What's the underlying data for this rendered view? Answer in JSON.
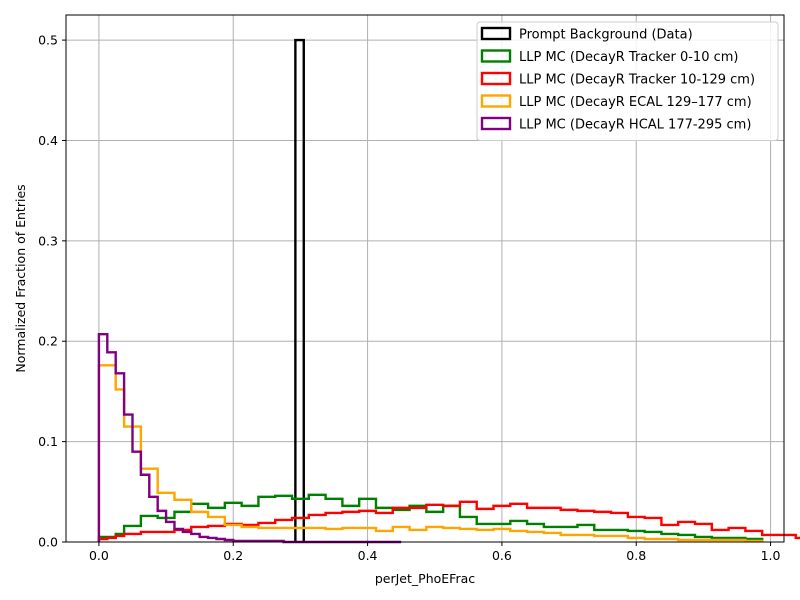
{
  "chart_data": {
    "type": "histogram-step",
    "title": "",
    "xlabel": "perJet_PhoEFrac",
    "ylabel": "Normalized Fraction of Entries",
    "xlim": [
      -0.049,
      1.02
    ],
    "ylim": [
      0,
      0.525
    ],
    "grid": true,
    "legend_position": "top-right",
    "x_ticks": [
      0.0,
      0.2,
      0.4,
      0.6,
      0.8,
      1.0
    ],
    "x_tick_labels": [
      "0.0",
      "0.2",
      "0.4",
      "0.6",
      "0.8",
      "1.0"
    ],
    "y_ticks": [
      0.0,
      0.1,
      0.2,
      0.3,
      0.4,
      0.5
    ],
    "y_tick_labels": [
      "0.0",
      "0.1",
      "0.2",
      "0.3",
      "0.4",
      "0.5"
    ],
    "bin_start": 0.0,
    "bin_width": 0.0125,
    "series": [
      {
        "name": "Prompt Background (Data)",
        "color": "#000000",
        "bins": [
          [
            0.2925,
            0.305,
            0.5
          ]
        ]
      },
      {
        "name": "LLP MC (DecayR Tracker 0-10 cm)",
        "color": "#008000",
        "values": [
          0.005,
          0.005,
          0.008,
          0.016,
          0.016,
          0.026,
          0.026,
          0.024,
          0.024,
          0.03,
          0.03,
          0.038,
          0.038,
          0.034,
          0.034,
          0.039,
          0.039,
          0.036,
          0.036,
          0.045,
          0.045,
          0.046,
          0.046,
          0.043,
          0.043,
          0.047,
          0.047,
          0.043,
          0.043,
          0.036,
          0.036,
          0.043,
          0.043,
          0.034,
          0.034,
          0.032,
          0.032,
          0.036,
          0.036,
          0.03,
          0.03,
          0.036,
          0.036,
          0.025,
          0.025,
          0.018,
          0.018,
          0.018,
          0.018,
          0.021,
          0.021,
          0.018,
          0.018,
          0.015,
          0.015,
          0.015,
          0.015,
          0.017,
          0.017,
          0.012,
          0.012,
          0.012,
          0.012,
          0.011,
          0.011,
          0.01,
          0.01,
          0.008,
          0.008,
          0.007,
          0.007,
          0.005,
          0.005,
          0.004,
          0.004,
          0.004,
          0.004,
          0.003,
          0.003
        ]
      },
      {
        "name": "LLP MC (DecayR Tracker 10-129 cm)",
        "color": "#ff0000",
        "values": [
          0.003,
          0.004,
          0.006,
          0.008,
          0.008,
          0.01,
          0.01,
          0.01,
          0.01,
          0.012,
          0.012,
          0.015,
          0.015,
          0.016,
          0.016,
          0.018,
          0.018,
          0.017,
          0.017,
          0.019,
          0.019,
          0.022,
          0.022,
          0.024,
          0.024,
          0.027,
          0.027,
          0.029,
          0.029,
          0.03,
          0.03,
          0.031,
          0.031,
          0.029,
          0.029,
          0.034,
          0.034,
          0.034,
          0.034,
          0.037,
          0.037,
          0.036,
          0.036,
          0.04,
          0.04,
          0.033,
          0.033,
          0.036,
          0.036,
          0.038,
          0.038,
          0.034,
          0.034,
          0.034,
          0.034,
          0.032,
          0.032,
          0.031,
          0.031,
          0.03,
          0.03,
          0.029,
          0.029,
          0.025,
          0.025,
          0.024,
          0.024,
          0.017,
          0.017,
          0.02,
          0.02,
          0.018,
          0.018,
          0.012,
          0.012,
          0.014,
          0.014,
          0.011,
          0.011,
          0.007,
          0.007,
          0.007,
          0.007,
          0.004,
          0.004,
          0.003,
          0.003,
          0.002,
          0.002,
          0.001,
          0.001,
          0.001,
          0.001,
          0.001,
          0.001,
          0.001,
          0.001,
          0.001
        ]
      },
      {
        "name": "LLP MC (DecayR ECAL 129–177 cm)",
        "color": "#ffa500",
        "values": [
          0.176,
          0.176,
          0.152,
          0.115,
          0.115,
          0.073,
          0.073,
          0.049,
          0.049,
          0.042,
          0.042,
          0.03,
          0.03,
          0.025,
          0.025,
          0.017,
          0.017,
          0.015,
          0.015,
          0.014,
          0.014,
          0.014,
          0.014,
          0.014,
          0.014,
          0.014,
          0.014,
          0.013,
          0.013,
          0.014,
          0.014,
          0.014,
          0.014,
          0.011,
          0.011,
          0.015,
          0.015,
          0.012,
          0.012,
          0.015,
          0.015,
          0.014,
          0.014,
          0.013,
          0.013,
          0.012,
          0.012,
          0.013,
          0.013,
          0.011,
          0.011,
          0.01,
          0.01,
          0.009,
          0.009,
          0.007,
          0.007,
          0.007,
          0.007,
          0.006,
          0.006,
          0.006,
          0.006,
          0.004,
          0.004,
          0.003,
          0.003,
          0.003,
          0.003,
          0.002,
          0.002,
          0.002,
          0.002,
          0.002,
          0.002,
          0.002,
          0.002,
          0.001,
          0.001
        ]
      },
      {
        "name": "LLP MC (DecayR HCAL 177-295 cm)",
        "color": "#800080",
        "values": [
          0.207,
          0.189,
          0.168,
          0.127,
          0.09,
          0.067,
          0.045,
          0.031,
          0.02,
          0.013,
          0.01,
          0.008,
          0.005,
          0.004,
          0.003,
          0.002,
          0.001,
          0.001,
          0.001,
          0.001,
          0.001,
          0.001,
          0.0,
          0.0,
          0.0,
          0.0,
          0.0,
          0.0,
          0.0,
          0.0,
          0.0,
          0.0,
          0.0,
          0.0,
          0.0,
          0.0
        ]
      }
    ]
  }
}
